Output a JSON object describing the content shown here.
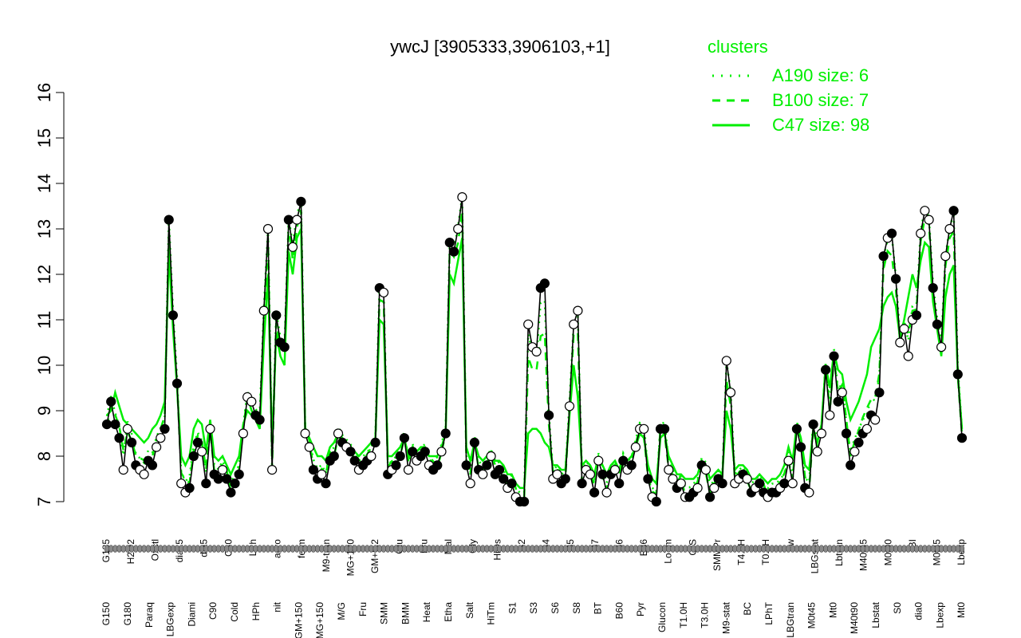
{
  "chart_data": {
    "type": "line",
    "title": "ywcJ [3905333,3906103,+1]",
    "xlabel": "",
    "ylabel": "",
    "ylim": [
      7,
      16
    ],
    "yticks": [
      7,
      8,
      9,
      10,
      11,
      12,
      13,
      14,
      15,
      16
    ],
    "legend": {
      "title": "clusters",
      "position": "top-right",
      "entries": [
        {
          "label": "A190 size: 6",
          "style": "dotted"
        },
        {
          "label": "B100 size: 7",
          "style": "dashed"
        },
        {
          "label": "C47 size: 98",
          "style": "solid"
        }
      ]
    },
    "colors": {
      "cluster": "#00ee00",
      "series": "#000000"
    },
    "x_labels_row1": [
      "G135",
      "H2O2",
      "Oxctl",
      "dia15",
      "dia5",
      "C30",
      "LPh",
      "aero",
      "ferm",
      "M9-tran",
      "MG+120",
      "GM+0.2",
      "Glu",
      "Fru",
      "Mal",
      "Gly",
      "HiOs",
      "S2",
      "S4",
      "S5",
      "S7",
      "S6",
      "B36",
      "LoTm",
      "G/S",
      "SMMPr",
      "T4.0H",
      "T0.0H",
      "Sw",
      "LBGstat",
      "Lbtran",
      "M40t45",
      "M0t90",
      "BI",
      "M0t45",
      "Lbexp"
    ],
    "x_labels_row2": [
      "G150",
      "G180",
      "Paraq",
      "LBGexp",
      "Diami",
      "C90",
      "Cold",
      "HPh",
      "nit",
      "GM+150",
      "MG+150",
      "M/G",
      "Fru",
      "SMM",
      "BMM",
      "Heat",
      "Etha",
      "Salt",
      "HiTm",
      "S1",
      "S3",
      "S6",
      "S8",
      "BT",
      "B60",
      "Pyr",
      "Glucon",
      "T1.0H",
      "T3.0H",
      "M9-stat",
      "BC",
      "LPhT",
      "LBGtran",
      "M0t45",
      "Mt0",
      "M40t90",
      "Lbstat",
      "S0",
      "dia0",
      "Lbexp",
      "Mt0"
    ],
    "series": [
      {
        "values": [
          8.7,
          9.2,
          8.7,
          8.4,
          7.7,
          8.6,
          8.3,
          7.8,
          7.7,
          7.6,
          7.9,
          7.8,
          8.2,
          8.4,
          8.6,
          13.2,
          11.1,
          9.6,
          7.4,
          7.2,
          7.3,
          8.0,
          8.3,
          8.1,
          7.4,
          8.6,
          7.6,
          7.5,
          7.7,
          7.5,
          7.2,
          7.4,
          7.6,
          8.5,
          9.3,
          9.2,
          8.9,
          8.8,
          11.2,
          13.0,
          7.7,
          11.1,
          10.5,
          10.4,
          13.2,
          12.6,
          13.2,
          13.6,
          8.5,
          8.2,
          7.7,
          7.5,
          7.6,
          7.4,
          7.9,
          8.0,
          8.5,
          8.3,
          8.2,
          8.1,
          7.9,
          7.7,
          7.8,
          7.9,
          8.0,
          8.3,
          11.7,
          11.6,
          7.6,
          7.7,
          7.8,
          8.0,
          8.4,
          7.7,
          8.1,
          7.9,
          8.0,
          8.1,
          7.8,
          7.7,
          7.8,
          8.1,
          8.5,
          12.7,
          12.5,
          13.0,
          13.7,
          7.8,
          7.4,
          8.3,
          7.7,
          7.6,
          7.8,
          8.0,
          7.6,
          7.7,
          7.5,
          7.3,
          7.4,
          7.1,
          7.0,
          7.0,
          10.9,
          10.4,
          10.3,
          11.7,
          11.8,
          8.9,
          7.5,
          7.6,
          7.4,
          7.5,
          9.1,
          10.9,
          11.2,
          7.4,
          7.7,
          7.6,
          7.2,
          7.9,
          7.6,
          7.2,
          7.6,
          7.7,
          7.4,
          7.9,
          7.7,
          7.8,
          8.2,
          8.6,
          8.6,
          7.5,
          7.1,
          7.0,
          8.6,
          8.6,
          7.7,
          7.5,
          7.3,
          7.4,
          7.1,
          7.1,
          7.2,
          7.3,
          7.8,
          7.7,
          7.1,
          7.3,
          7.5,
          7.4,
          10.1,
          9.4,
          7.4,
          7.5,
          7.6,
          7.5,
          7.2,
          7.3,
          7.4,
          7.2,
          7.1,
          7.2,
          7.2,
          7.3,
          7.4,
          7.9,
          7.4,
          8.6,
          8.2,
          7.3,
          7.2,
          8.7,
          8.1,
          8.5,
          9.9,
          8.9,
          10.2,
          9.2,
          9.4,
          8.5,
          7.8,
          8.1,
          8.3,
          8.5,
          8.6,
          8.9,
          8.8,
          9.4,
          12.4,
          12.8,
          12.9,
          11.9,
          10.5,
          10.8,
          10.2,
          11.0,
          11.1,
          12.9,
          13.4,
          13.2,
          11.7,
          10.9,
          10.4,
          12.4,
          13.0,
          13.4,
          9.8,
          8.4
        ],
        "open_markers": [
          4,
          5,
          8,
          9,
          12,
          13,
          18,
          19,
          23,
          25,
          28,
          33,
          34,
          35,
          38,
          39,
          40,
          45,
          46,
          48,
          49,
          52,
          56,
          58,
          61,
          64,
          67,
          69,
          73,
          75,
          78,
          81,
          85,
          86,
          88,
          91,
          93,
          97,
          99,
          102,
          103,
          104,
          108,
          109,
          112,
          113,
          114,
          116,
          117,
          119,
          121,
          123,
          126,
          128,
          129,
          130,
          132,
          136,
          137,
          139,
          140,
          143,
          145,
          147,
          150,
          151,
          152,
          153,
          155,
          157,
          160,
          163,
          165,
          166,
          170,
          172,
          173,
          175,
          178,
          181,
          184,
          186,
          189,
          192,
          193,
          194,
          195,
          197,
          198,
          199,
          202,
          203,
          204
        ]
      }
    ],
    "clusters": {
      "C47": [
        8.9,
        9.0,
        9.4,
        9.1,
        8.8,
        8.7,
        8.6,
        8.5,
        8.4,
        8.3,
        8.4,
        8.6,
        8.7,
        8.9,
        9.2,
        12.5,
        10.8,
        9.5,
        8.0,
        7.8,
        8.0,
        8.6,
        8.8,
        8.7,
        8.1,
        8.8,
        8.0,
        7.9,
        8.0,
        7.8,
        7.6,
        7.8,
        8.0,
        8.7,
        9.0,
        8.9,
        8.8,
        8.6,
        10.5,
        12.0,
        8.2,
        10.7,
        10.2,
        10.0,
        12.5,
        12.0,
        12.8,
        13.0,
        8.6,
        8.4,
        8.2,
        8.0,
        8.0,
        7.9,
        8.2,
        8.3,
        8.5,
        8.4,
        8.3,
        8.2,
        8.1,
        8.0,
        8.1,
        8.2,
        8.3,
        8.4,
        11.0,
        10.9,
        8.0,
        8.0,
        8.1,
        8.2,
        8.4,
        8.0,
        8.2,
        8.1,
        8.2,
        8.2,
        8.0,
        8.0,
        8.0,
        8.2,
        8.5,
        12.0,
        11.8,
        12.3,
        12.8,
        8.2,
        7.9,
        8.3,
        8.0,
        7.9,
        8.0,
        8.1,
        7.9,
        7.9,
        7.8,
        7.6,
        7.6,
        7.4,
        7.3,
        7.3,
        8.5,
        8.6,
        8.6,
        8.5,
        8.3,
        8.2,
        7.8,
        7.8,
        7.7,
        7.7,
        8.9,
        10.0,
        9.3,
        7.8,
        7.9,
        7.8,
        7.6,
        8.0,
        7.8,
        7.6,
        7.8,
        7.9,
        7.7,
        8.0,
        7.9,
        8.0,
        8.2,
        8.5,
        8.4,
        7.8,
        7.5,
        7.4,
        8.4,
        8.5,
        8.0,
        7.8,
        7.6,
        7.6,
        7.5,
        7.5,
        7.5,
        7.6,
        7.9,
        7.8,
        7.5,
        7.6,
        7.7,
        7.6,
        9.0,
        8.6,
        7.7,
        7.8,
        7.8,
        7.7,
        7.5,
        7.5,
        7.6,
        7.5,
        7.4,
        7.5,
        7.5,
        7.6,
        7.8,
        8.2,
        7.9,
        8.7,
        8.4,
        7.8,
        7.7,
        8.6,
        8.3,
        8.7,
        10.0,
        9.5,
        10.3,
        9.9,
        9.8,
        9.2,
        8.8,
        9.0,
        9.2,
        9.5,
        9.8,
        10.4,
        10.6,
        10.8,
        11.3,
        11.5,
        11.6,
        11.3,
        10.6,
        11.0,
        11.5,
        12.0,
        11.7,
        12.3,
        12.7,
        12.6,
        11.4,
        10.8,
        10.2,
        11.5,
        12.0,
        12.2,
        9.8,
        8.6
      ]
    }
  }
}
